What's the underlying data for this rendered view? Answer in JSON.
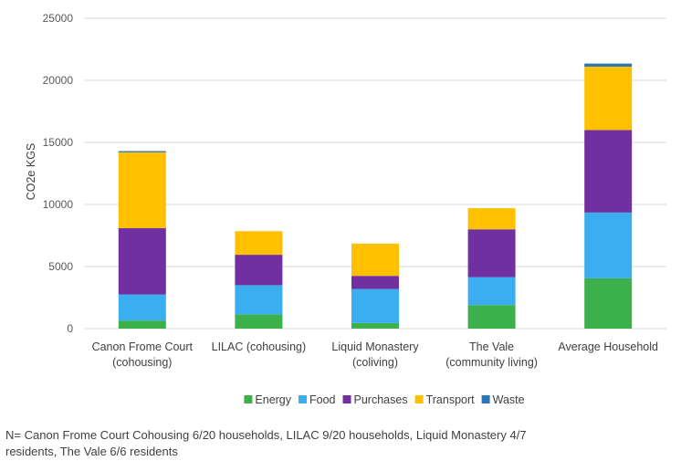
{
  "chart_data": {
    "type": "bar",
    "stacked": true,
    "title": "",
    "ylabel": "CO2e KGS",
    "xlabel": "",
    "ylim": [
      0,
      25000
    ],
    "yticks": [
      0,
      5000,
      10000,
      15000,
      20000,
      25000
    ],
    "grid": true,
    "legend_position": "bottom",
    "categories": [
      [
        "Canon Frome Court",
        "(cohousing)"
      ],
      [
        "LILAC (cohousing)"
      ],
      [
        "Liquid Monastery",
        "(coliving)"
      ],
      [
        "The Vale",
        "(community living)"
      ],
      [
        "Average Household"
      ]
    ],
    "series": [
      {
        "name": "Energy",
        "color": "#3cb04a",
        "values": [
          650,
          1150,
          450,
          1900,
          4050
        ]
      },
      {
        "name": "Food",
        "color": "#3baef0",
        "values": [
          2100,
          2350,
          2750,
          2250,
          5300
        ]
      },
      {
        "name": "Purchases",
        "color": "#7030a0",
        "values": [
          5350,
          2450,
          1050,
          3850,
          6650
        ]
      },
      {
        "name": "Transport",
        "color": "#ffc000",
        "values": [
          6100,
          1900,
          2600,
          1700,
          5100
        ]
      },
      {
        "name": "Waste",
        "color": "#2e75b6",
        "values": [
          100,
          0,
          0,
          0,
          250
        ]
      }
    ]
  },
  "footnote": "N= Canon Frome Court Cohousing 6/20 households, LILAC 9/20 households, Liquid Monastery 4/7 residents, The Vale 6/6 residents"
}
